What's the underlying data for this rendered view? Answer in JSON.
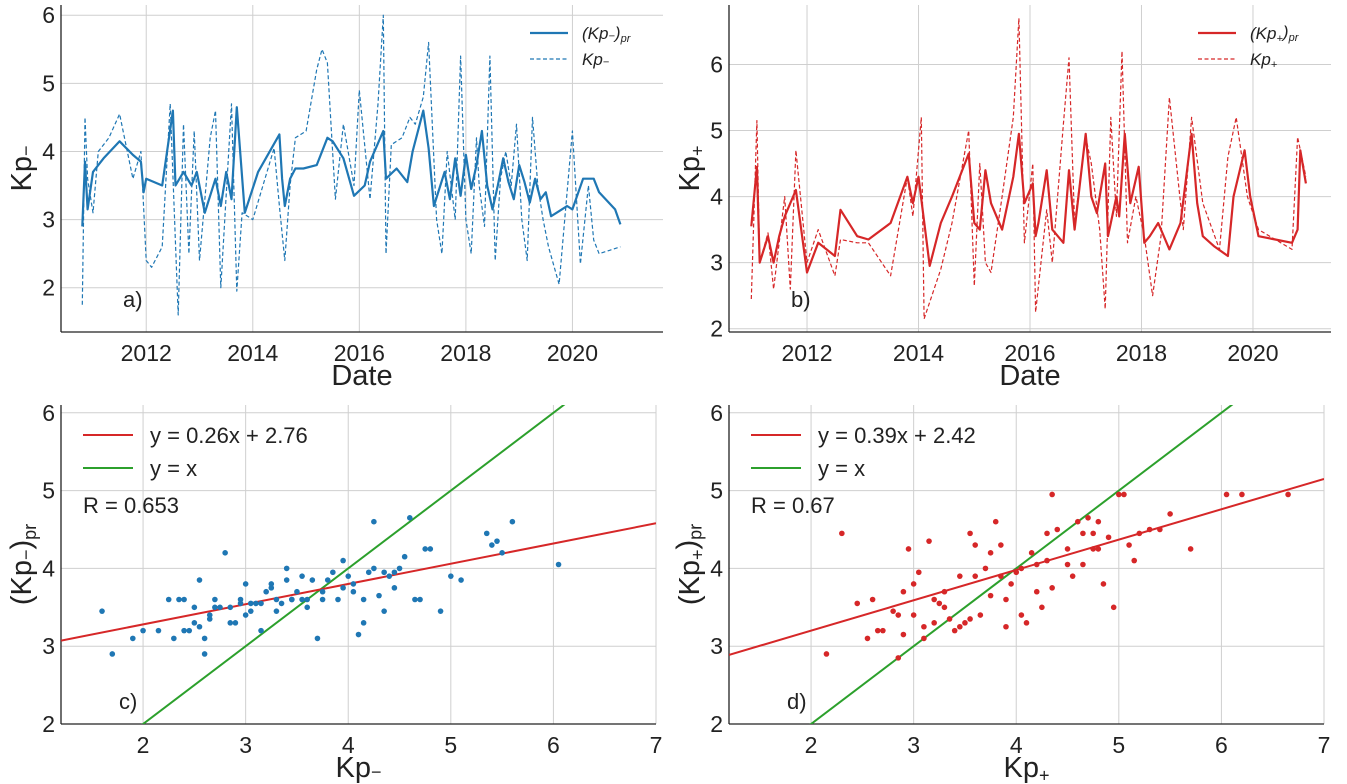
{
  "chart_data": [
    {
      "type": "line",
      "panel_label": "a)",
      "xlabel": "Date",
      "ylabel": "Kp−",
      "xticks": [
        "2012",
        "2014",
        "2016",
        "2018",
        "2020"
      ],
      "yticks": [
        "2",
        "3",
        "4",
        "5",
        "6"
      ],
      "xlim": [
        2010.4,
        2021.7
      ],
      "ylim": [
        1.35,
        6.15
      ],
      "grid": true,
      "legend_position": "top-right",
      "color": "#1f77b4",
      "series": [
        {
          "name": "(Kp−)pr",
          "style": "solid",
          "x": [
            2010.8,
            2010.85,
            2010.9,
            2011.0,
            2011.1,
            2011.2,
            2011.5,
            2011.75,
            2011.9,
            2011.95,
            2012.0,
            2012.3,
            2012.5,
            2012.55,
            2012.7,
            2012.85,
            2012.95,
            2013.1,
            2013.3,
            2013.4,
            2013.5,
            2013.6,
            2013.7,
            2013.85,
            2014.1,
            2014.5,
            2014.55,
            2014.6,
            2014.7,
            2014.8,
            2014.95,
            2015.2,
            2015.4,
            2015.5,
            2015.7,
            2015.9,
            2016.1,
            2016.2,
            2016.45,
            2016.5,
            2016.7,
            2016.9,
            2017.0,
            2017.2,
            2017.3,
            2017.4,
            2017.6,
            2017.7,
            2017.8,
            2017.9,
            2018.0,
            2018.1,
            2018.2,
            2018.3,
            2018.4,
            2018.5,
            2018.6,
            2018.7,
            2018.8,
            2018.9,
            2019.0,
            2019.1,
            2019.2,
            2019.3,
            2019.4,
            2019.5,
            2019.6,
            2019.7,
            2019.8,
            2019.9,
            2020.0,
            2020.2,
            2020.4,
            2020.5,
            2020.8,
            2020.9
          ],
          "y": [
            2.9,
            3.85,
            3.15,
            3.7,
            3.8,
            3.9,
            4.15,
            3.95,
            3.85,
            3.4,
            3.6,
            3.5,
            4.6,
            3.5,
            3.7,
            3.5,
            3.7,
            3.1,
            3.6,
            3.2,
            3.7,
            3.3,
            4.65,
            3.1,
            3.7,
            4.25,
            3.6,
            3.2,
            3.6,
            3.75,
            3.75,
            3.8,
            4.2,
            4.15,
            3.9,
            3.35,
            3.5,
            3.85,
            4.3,
            3.6,
            3.75,
            3.55,
            4.0,
            4.6,
            4.05,
            3.2,
            3.7,
            3.3,
            3.9,
            3.35,
            3.95,
            3.45,
            3.8,
            4.3,
            3.5,
            3.15,
            3.5,
            3.9,
            3.55,
            3.3,
            3.8,
            3.55,
            3.25,
            3.6,
            3.3,
            3.4,
            3.05,
            3.1,
            3.15,
            3.2,
            3.15,
            3.6,
            3.6,
            3.4,
            3.15,
            2.93
          ]
        },
        {
          "name": "Kp−",
          "style": "dashed",
          "x": [
            2010.8,
            2010.85,
            2010.9,
            2011.0,
            2011.1,
            2011.3,
            2011.5,
            2011.75,
            2011.9,
            2012.0,
            2012.1,
            2012.3,
            2012.45,
            2012.6,
            2012.7,
            2012.8,
            2012.9,
            2013.0,
            2013.2,
            2013.3,
            2013.4,
            2013.6,
            2013.7,
            2013.8,
            2014.0,
            2014.4,
            2014.5,
            2014.6,
            2014.7,
            2014.8,
            2015.0,
            2015.2,
            2015.3,
            2015.4,
            2015.55,
            2015.7,
            2015.9,
            2016.0,
            2016.2,
            2016.35,
            2016.45,
            2016.5,
            2016.6,
            2016.8,
            2016.95,
            2017.05,
            2017.2,
            2017.3,
            2017.45,
            2017.55,
            2017.65,
            2017.8,
            2017.9,
            2018.0,
            2018.1,
            2018.2,
            2018.25,
            2018.35,
            2018.45,
            2018.55,
            2018.65,
            2018.75,
            2018.85,
            2018.95,
            2019.05,
            2019.15,
            2019.25,
            2019.35,
            2019.45,
            2019.55,
            2019.75,
            2020.0,
            2020.15,
            2020.3,
            2020.4,
            2020.5,
            2020.7,
            2020.9
          ],
          "y": [
            1.75,
            4.5,
            3.6,
            3.1,
            4.0,
            4.2,
            4.55,
            3.6,
            4.0,
            2.4,
            2.3,
            2.6,
            4.7,
            1.6,
            4.4,
            2.5,
            4.3,
            2.4,
            4.2,
            4.6,
            2.0,
            4.7,
            1.95,
            3.1,
            3.0,
            4.05,
            3.2,
            2.4,
            3.5,
            4.2,
            4.3,
            5.2,
            5.5,
            5.3,
            3.3,
            4.4,
            3.5,
            4.9,
            3.3,
            4.7,
            6.0,
            2.5,
            4.1,
            4.2,
            4.5,
            4.4,
            4.8,
            5.6,
            3.0,
            2.5,
            4.0,
            3.0,
            5.4,
            3.0,
            2.5,
            4.2,
            3.5,
            2.9,
            5.4,
            2.4,
            3.6,
            4.0,
            3.5,
            4.4,
            3.0,
            2.4,
            4.5,
            3.5,
            3.0,
            2.6,
            2.05,
            4.3,
            2.35,
            3.5,
            2.7,
            2.5,
            2.55,
            2.6
          ]
        }
      ]
    },
    {
      "type": "line",
      "panel_label": "b)",
      "xlabel": "Date",
      "ylabel": "Kp+",
      "xticks": [
        "2012",
        "2014",
        "2016",
        "2018",
        "2020"
      ],
      "yticks": [
        "2",
        "3",
        "4",
        "5",
        "6"
      ],
      "xlim": [
        2010.6,
        2021.4
      ],
      "ylim": [
        1.95,
        6.9
      ],
      "grid": true,
      "legend_position": "top-right",
      "color": "#d62728",
      "series": [
        {
          "name": "(Kp+)pr",
          "style": "solid",
          "x": [
            2011.0,
            2011.1,
            2011.15,
            2011.3,
            2011.4,
            2011.5,
            2011.6,
            2011.8,
            2012.0,
            2012.2,
            2012.5,
            2012.6,
            2012.9,
            2013.1,
            2013.5,
            2013.8,
            2013.9,
            2014.0,
            2014.2,
            2014.4,
            2014.6,
            2014.9,
            2015.0,
            2015.1,
            2015.2,
            2015.3,
            2015.5,
            2015.7,
            2015.8,
            2015.9,
            2016.05,
            2016.1,
            2016.15,
            2016.3,
            2016.4,
            2016.6,
            2016.7,
            2016.8,
            2017.0,
            2017.1,
            2017.2,
            2017.35,
            2017.4,
            2017.55,
            2017.6,
            2017.7,
            2017.8,
            2017.95,
            2018.05,
            2018.15,
            2018.3,
            2018.5,
            2018.7,
            2018.9,
            2019.0,
            2019.1,
            2019.3,
            2019.55,
            2019.65,
            2019.85,
            2019.95,
            2020.1,
            2020.4,
            2020.7,
            2020.8,
            2020.85,
            2020.95
          ],
          "y": [
            3.55,
            4.45,
            3.0,
            3.4,
            3.0,
            3.4,
            3.7,
            4.1,
            2.85,
            3.3,
            3.1,
            3.8,
            3.4,
            3.35,
            3.6,
            4.3,
            3.9,
            4.3,
            2.95,
            3.6,
            4.0,
            4.65,
            3.6,
            3.5,
            4.4,
            3.9,
            3.5,
            4.3,
            4.95,
            3.9,
            4.2,
            3.4,
            3.6,
            4.4,
            3.5,
            3.3,
            4.4,
            3.5,
            4.95,
            4.0,
            3.75,
            4.5,
            3.4,
            4.0,
            3.7,
            4.95,
            3.9,
            4.45,
            3.3,
            3.4,
            3.6,
            3.2,
            3.6,
            4.95,
            3.9,
            3.4,
            3.25,
            3.1,
            4.0,
            4.7,
            4.0,
            3.4,
            3.35,
            3.3,
            3.5,
            4.7,
            4.2
          ]
        },
        {
          "name": "Kp+",
          "style": "dashed",
          "x": [
            2011.0,
            2011.1,
            2011.15,
            2011.3,
            2011.4,
            2011.6,
            2011.7,
            2011.8,
            2012.0,
            2012.2,
            2012.5,
            2012.6,
            2012.9,
            2013.1,
            2013.5,
            2013.8,
            2013.9,
            2014.05,
            2014.1,
            2014.4,
            2014.6,
            2014.9,
            2015.0,
            2015.1,
            2015.2,
            2015.3,
            2015.5,
            2015.7,
            2015.8,
            2015.9,
            2016.05,
            2016.1,
            2016.3,
            2016.4,
            2016.6,
            2016.7,
            2016.8,
            2017.0,
            2017.1,
            2017.25,
            2017.35,
            2017.45,
            2017.55,
            2017.65,
            2017.75,
            2017.9,
            2018.05,
            2018.2,
            2018.35,
            2018.5,
            2018.75,
            2018.9,
            2019.1,
            2019.4,
            2019.55,
            2019.7,
            2019.9,
            2020.1,
            2020.7,
            2020.8,
            2020.95
          ],
          "y": [
            2.45,
            5.15,
            3.0,
            3.45,
            2.6,
            4.0,
            2.6,
            4.7,
            3.0,
            3.5,
            2.8,
            3.35,
            3.3,
            3.3,
            2.8,
            4.3,
            3.7,
            5.2,
            2.15,
            2.9,
            3.6,
            5.0,
            2.65,
            4.5,
            3.0,
            2.85,
            4.0,
            5.2,
            6.7,
            3.3,
            4.5,
            2.25,
            3.8,
            3.0,
            5.1,
            6.1,
            3.6,
            4.9,
            4.5,
            3.5,
            2.3,
            5.2,
            3.7,
            6.2,
            3.3,
            4.0,
            3.4,
            2.5,
            3.4,
            5.5,
            3.5,
            5.2,
            3.9,
            3.2,
            4.6,
            5.2,
            4.0,
            3.5,
            3.2,
            4.9,
            4.3
          ]
        }
      ]
    },
    {
      "type": "scatter",
      "panel_label": "c)",
      "xlabel": "Kp−",
      "ylabel": "(Kp−)pr",
      "xticks": [
        "2",
        "3",
        "4",
        "5",
        "6",
        "7"
      ],
      "yticks": [
        "2",
        "3",
        "4",
        "5",
        "6"
      ],
      "xlim": [
        1.2,
        7.0
      ],
      "ylim": [
        2.0,
        6.1
      ],
      "grid": true,
      "legend_position": "top-left",
      "point_color": "#1f77b4",
      "annotation": "R = 0.653",
      "fit_line": {
        "label": "y = 0.26x + 2.76",
        "slope": 0.26,
        "intercept": 2.76,
        "color": "#d62728"
      },
      "identity_line": {
        "label": "y = x",
        "color": "#2ca02c"
      },
      "points": {
        "x": [
          1.6,
          1.7,
          1.9,
          2.0,
          2.15,
          2.25,
          2.3,
          2.4,
          2.45,
          2.5,
          2.5,
          2.55,
          2.6,
          2.6,
          2.65,
          2.7,
          2.75,
          2.8,
          2.85,
          2.9,
          2.95,
          3.0,
          3.0,
          3.05,
          3.1,
          3.15,
          3.2,
          3.25,
          3.3,
          3.35,
          3.4,
          3.4,
          3.45,
          3.5,
          3.55,
          3.6,
          3.65,
          3.7,
          3.75,
          3.8,
          3.9,
          3.95,
          4.0,
          4.05,
          4.1,
          4.15,
          4.2,
          4.25,
          4.3,
          4.35,
          4.4,
          4.45,
          4.5,
          4.55,
          4.6,
          4.7,
          4.8,
          4.9,
          5.0,
          5.1,
          5.35,
          5.4,
          5.45,
          5.5,
          5.6,
          6.05,
          2.4,
          2.7,
          3.05,
          3.3,
          3.6,
          3.95,
          4.25,
          2.55,
          2.85,
          3.15,
          3.45,
          3.75,
          4.05,
          4.35,
          4.65,
          2.35,
          2.65,
          2.95,
          3.25,
          3.55,
          3.85,
          4.15,
          4.45,
          4.75
        ],
        "y": [
          3.45,
          2.9,
          3.1,
          3.2,
          3.2,
          3.6,
          3.1,
          3.6,
          3.2,
          3.3,
          3.5,
          3.85,
          2.9,
          3.1,
          3.35,
          3.6,
          3.5,
          4.2,
          3.5,
          3.3,
          3.6,
          3.8,
          3.4,
          3.55,
          3.55,
          3.2,
          3.7,
          3.8,
          3.6,
          3.55,
          3.85,
          4.0,
          3.6,
          3.7,
          3.9,
          3.6,
          3.85,
          3.1,
          3.7,
          3.85,
          3.6,
          4.1,
          3.9,
          3.7,
          3.15,
          3.3,
          3.95,
          4.6,
          3.65,
          3.45,
          3.9,
          3.75,
          4.0,
          4.15,
          4.65,
          3.6,
          4.25,
          3.45,
          3.9,
          3.85,
          4.45,
          4.3,
          4.35,
          4.2,
          4.6,
          4.05,
          3.2,
          3.5,
          3.45,
          3.45,
          3.5,
          3.75,
          4.0,
          3.25,
          3.3,
          3.55,
          3.6,
          3.6,
          3.8,
          3.95,
          3.6,
          3.6,
          3.4,
          3.55,
          3.75,
          3.6,
          3.95,
          3.6,
          3.95,
          4.25
        ]
      }
    },
    {
      "type": "scatter",
      "panel_label": "d)",
      "xlabel": "Kp+",
      "ylabel": "(Kp+)pr",
      "xticks": [
        "2",
        "3",
        "4",
        "5",
        "6",
        "7"
      ],
      "yticks": [
        "2",
        "3",
        "4",
        "5",
        "6"
      ],
      "xlim": [
        1.2,
        7.0
      ],
      "ylim": [
        2.0,
        6.1
      ],
      "grid": true,
      "legend_position": "top-left",
      "point_color": "#d62728",
      "annotation": "R = 0.67",
      "fit_line": {
        "label": "y = 0.39x + 2.42",
        "slope": 0.39,
        "intercept": 2.42,
        "color": "#d62728"
      },
      "identity_line": {
        "label": "y = x",
        "color": "#2ca02c"
      },
      "points": {
        "x": [
          2.15,
          2.3,
          2.45,
          2.55,
          2.6,
          2.7,
          2.8,
          2.85,
          2.9,
          2.95,
          3.0,
          3.05,
          3.1,
          3.15,
          3.2,
          3.25,
          3.3,
          3.35,
          3.4,
          3.45,
          3.5,
          3.55,
          3.6,
          3.65,
          3.7,
          3.75,
          3.8,
          3.85,
          3.9,
          3.95,
          4.0,
          4.05,
          4.1,
          4.15,
          4.2,
          4.25,
          4.3,
          4.35,
          4.4,
          4.5,
          4.55,
          4.6,
          4.65,
          4.7,
          4.75,
          4.8,
          4.85,
          4.9,
          4.95,
          5.0,
          5.05,
          5.1,
          5.15,
          5.2,
          5.3,
          5.4,
          5.5,
          5.7,
          6.05,
          6.2,
          6.65,
          2.65,
          2.9,
          3.2,
          3.45,
          3.75,
          4.05,
          4.35,
          4.65,
          3.0,
          3.3,
          3.6,
          3.9,
          4.2,
          4.5,
          4.8,
          2.85,
          3.1,
          3.55,
          3.85,
          4.3,
          4.75
        ],
        "y": [
          2.9,
          4.45,
          3.55,
          3.1,
          3.6,
          3.2,
          3.45,
          2.85,
          3.7,
          4.25,
          3.4,
          3.95,
          3.1,
          4.35,
          3.3,
          3.55,
          3.7,
          3.35,
          3.2,
          3.9,
          3.3,
          4.45,
          4.3,
          3.4,
          4.0,
          4.2,
          4.6,
          4.3,
          3.25,
          3.8,
          3.95,
          4.0,
          3.3,
          4.2,
          3.7,
          3.5,
          4.1,
          4.95,
          4.5,
          4.25,
          3.9,
          4.6,
          4.45,
          4.65,
          4.25,
          4.6,
          3.8,
          4.4,
          3.5,
          4.95,
          4.95,
          4.3,
          4.1,
          4.45,
          4.5,
          4.5,
          4.7,
          4.25,
          4.95,
          4.95,
          4.95,
          3.2,
          3.15,
          3.6,
          3.25,
          3.65,
          3.4,
          3.75,
          4.05,
          3.8,
          3.5,
          3.9,
          3.6,
          4.05,
          4.05,
          4.25,
          3.4,
          3.25,
          3.35,
          3.9,
          4.45,
          4.45
        ]
      }
    }
  ]
}
